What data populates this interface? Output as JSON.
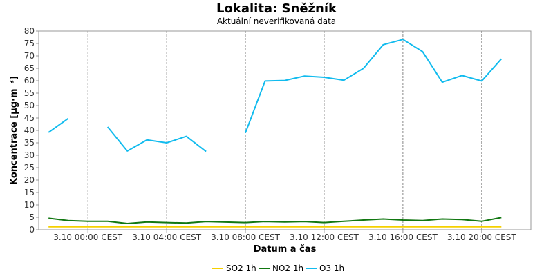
{
  "chart_data": {
    "type": "line",
    "title": "Lokalita: Sněžník",
    "subtitle": "Aktuální neverifikovaná data",
    "xlabel": "Datum a čas",
    "ylabel": "Koncentrace [µg·m⁻³]",
    "ylim": [
      0,
      80
    ],
    "yticks": [
      0,
      5,
      10,
      15,
      20,
      25,
      30,
      35,
      40,
      45,
      50,
      55,
      60,
      65,
      70,
      75,
      80
    ],
    "xlim": [
      -2.5,
      22.5
    ],
    "xticks": [
      {
        "x": 0,
        "label": "3.10 00:00 CEST"
      },
      {
        "x": 4,
        "label": "3.10 04:00 CEST"
      },
      {
        "x": 8,
        "label": "3.10 08:00 CEST"
      },
      {
        "x": 12,
        "label": "3.10 12:00 CEST"
      },
      {
        "x": 16,
        "label": "3.10 16:00 CEST"
      },
      {
        "x": 20,
        "label": "3.10 20:00 CEST"
      }
    ],
    "grid": true,
    "legend_position": "bottom",
    "series": [
      {
        "name": "SO2 1h",
        "color": "#f5d000",
        "x": [
          -2,
          -1,
          0,
          1,
          2,
          3,
          4,
          5,
          6,
          8,
          9,
          10,
          11,
          12,
          13,
          14,
          15,
          16,
          17,
          18,
          19,
          20,
          21
        ],
        "values": [
          1.2,
          1.2,
          1.2,
          1.2,
          1.2,
          1.2,
          1.2,
          1.2,
          1.2,
          1.2,
          1.2,
          1.2,
          1.2,
          1.2,
          1.2,
          1.2,
          1.2,
          1.2,
          1.2,
          1.2,
          1.2,
          1.2,
          1.2
        ]
      },
      {
        "name": "NO2 1h",
        "color": "#117711",
        "x": [
          -2,
          -1,
          0,
          1,
          2,
          3,
          4,
          5,
          6,
          8,
          9,
          10,
          11,
          12,
          13,
          14,
          15,
          16,
          17,
          18,
          19,
          20,
          21
        ],
        "values": [
          4.6,
          3.7,
          3.4,
          3.4,
          2.5,
          3.1,
          2.9,
          2.7,
          3.3,
          2.9,
          3.3,
          3.1,
          3.3,
          2.9,
          3.4,
          3.9,
          4.3,
          3.9,
          3.7,
          4.3,
          4.1,
          3.4,
          4.9
        ]
      },
      {
        "name": "O3 1h",
        "color": "#11bbee",
        "x": [
          -2,
          -1,
          1,
          2,
          3,
          4,
          5,
          6,
          8,
          9,
          10,
          11,
          12,
          13,
          14,
          15,
          16,
          17,
          18,
          19,
          20,
          21
        ],
        "values": [
          39.2,
          44.8,
          41.4,
          31.7,
          36.2,
          35.0,
          37.6,
          31.5,
          39.0,
          59.9,
          60.1,
          61.9,
          61.4,
          60.2,
          65.0,
          74.5,
          76.6,
          71.7,
          59.4,
          62.1,
          59.9,
          68.8
        ],
        "segments": [
          [
            0,
            1
          ],
          [
            2,
            7
          ],
          [
            8,
            21
          ]
        ]
      }
    ]
  }
}
